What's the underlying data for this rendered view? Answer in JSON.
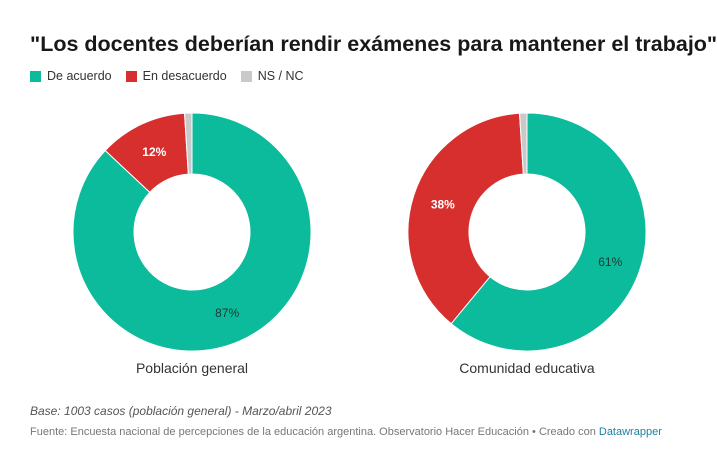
{
  "chart_data": {
    "type": "pie",
    "title": "\"Los docentes deberían rendir exámenes para mantener el trabajo\"",
    "legend": [
      {
        "label": "De acuerdo",
        "color": "#0cba9c"
      },
      {
        "label": "En desacuerdo",
        "color": "#d72e2e"
      },
      {
        "label": "NS / NC",
        "color": "#c9c9c9"
      }
    ],
    "charts": [
      {
        "name": "Población general",
        "slices": [
          {
            "category": "De acuerdo",
            "value": 87,
            "label": "87%"
          },
          {
            "category": "En desacuerdo",
            "value": 12,
            "label": "12%"
          },
          {
            "category": "NS / NC",
            "value": 1,
            "label": ""
          }
        ]
      },
      {
        "name": "Comunidad educativa",
        "slices": [
          {
            "category": "De acuerdo",
            "value": 61,
            "label": "61%"
          },
          {
            "category": "En desacuerdo",
            "value": 38,
            "label": "38%"
          },
          {
            "category": "NS / NC",
            "value": 1,
            "label": ""
          }
        ]
      }
    ]
  },
  "notes": "Base: 1003 casos (población general) - Marzo/abril 2023",
  "source": {
    "text": "Fuente: Encuesta nacional de percepciones de la educación argentina. Observatorio Hacer Educación • Creado con ",
    "link": "Datawrapper"
  }
}
